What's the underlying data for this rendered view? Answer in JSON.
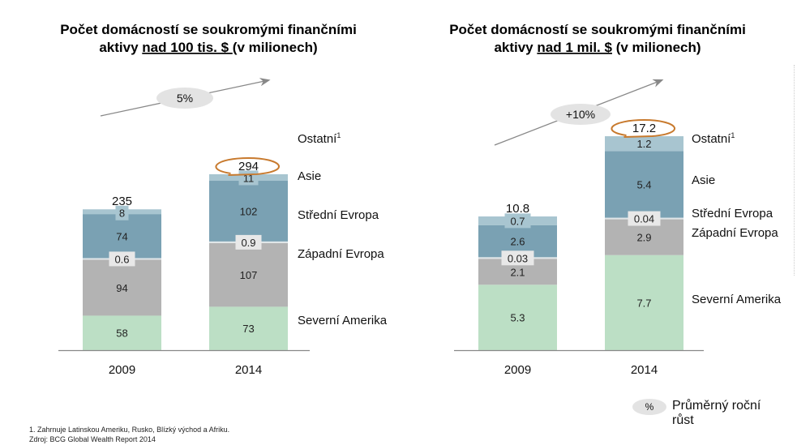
{
  "chart_data": [
    {
      "type": "bar",
      "stacked": true,
      "title_lines": [
        "Počet domácností se soukromými finančními",
        "aktivy ",
        "nad 100 tis. $ ",
        "(v milionech)"
      ],
      "categories": [
        "2009",
        "2014"
      ],
      "series": [
        {
          "name": "Severní Amerika",
          "values": [
            58,
            73
          ],
          "color": "#bcdfc5"
        },
        {
          "name": "Západní Evropa",
          "values": [
            94,
            107
          ],
          "color": "#b3b3b3"
        },
        {
          "name": "Střední Evropa",
          "values": [
            0.6,
            0.9
          ],
          "color": "#e6e6e6"
        },
        {
          "name": "Asie",
          "values": [
            74,
            102
          ],
          "color": "#7aa1b3"
        },
        {
          "name": "Ostatní",
          "values": [
            8,
            11
          ],
          "color": "#a8c5d0"
        }
      ],
      "legend_labels": [
        "Severní Amerika",
        "Západní Evropa",
        "Střední Evropa",
        "Asie",
        "Ostatní"
      ],
      "legend_footnote_mark": "1",
      "totals": [
        "235",
        "294"
      ],
      "value_labels": [
        [
          "58",
          "94",
          "0.6",
          "74",
          "8"
        ],
        [
          "73",
          "107",
          "0.9",
          "102",
          "11"
        ]
      ],
      "growth_label": "5%",
      "highlighted_total": "294",
      "legend": "right",
      "xlabel": "",
      "ylabel": ""
    },
    {
      "type": "bar",
      "stacked": true,
      "title_lines": [
        "Počet domácností se soukromými finančními",
        "aktivy ",
        "nad 1 mil. $",
        " (v milionech)"
      ],
      "categories": [
        "2009",
        "2014"
      ],
      "series": [
        {
          "name": "Severní Amerika",
          "values": [
            5.3,
            7.7
          ],
          "color": "#bcdfc5"
        },
        {
          "name": "Západní Evropa",
          "values": [
            2.1,
            2.9
          ],
          "color": "#b3b3b3"
        },
        {
          "name": "Střední Evropa",
          "values": [
            0.03,
            0.04
          ],
          "color": "#e6e6e6"
        },
        {
          "name": "Asie",
          "values": [
            2.6,
            5.4
          ],
          "color": "#7aa1b3"
        },
        {
          "name": "Ostatní",
          "values": [
            0.7,
            1.2
          ],
          "color": "#a8c5d0"
        }
      ],
      "legend_labels": [
        "Severní Amerika",
        "Západní Evropa",
        "Střední Evropa",
        "Asie",
        "Ostatní"
      ],
      "legend_footnote_mark": "1",
      "totals": [
        "10.8",
        "17.2"
      ],
      "value_labels": [
        [
          "5.3",
          "2.1",
          "0.03",
          "2.6",
          "0.7"
        ],
        [
          "7.7",
          "2.9",
          "0.04",
          "5.4",
          "1.2"
        ]
      ],
      "growth_label": "+10%",
      "highlighted_total": "17.2",
      "legend": "right",
      "xlabel": "",
      "ylabel": ""
    }
  ],
  "colors": {
    "highlight_ring": "#c87a2e",
    "growth_pill": "#e3e3e3",
    "arrow": "#888888",
    "axis": "#888888"
  },
  "key": {
    "symbol": "%",
    "label": "Průměrný roční růst"
  },
  "footnotes": {
    "note1": "1. Zahrnuje Latinskou Ameriku, Rusko, Blízký východ a Afriku.",
    "source": "Zdroj: BCG Global Wealth Report 2014"
  }
}
